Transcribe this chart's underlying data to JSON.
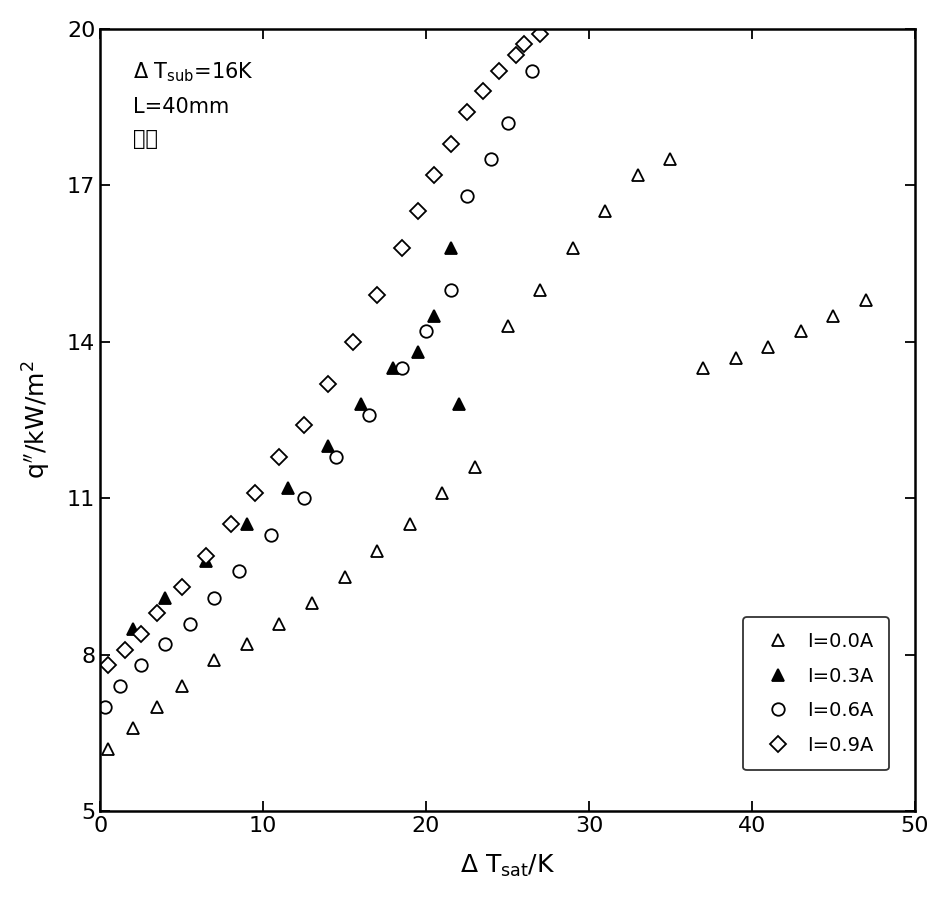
{
  "xlim": [
    0,
    50
  ],
  "ylim": [
    5,
    20
  ],
  "xticks": [
    0,
    10,
    20,
    30,
    40,
    50
  ],
  "yticks": [
    5,
    8,
    11,
    14,
    17,
    20
  ],
  "x00": [
    0.5,
    2.0,
    3.5,
    5.0,
    7.0,
    9.0,
    11.0,
    13.0,
    15.0,
    17.0,
    19.0,
    21.0,
    23.0,
    25.0,
    27.0,
    29.0,
    31.0,
    33.0,
    35.0,
    37.0,
    39.0,
    41.0,
    43.0,
    45.0,
    47.0
  ],
  "y00": [
    6.2,
    6.6,
    7.0,
    7.4,
    7.9,
    8.2,
    8.6,
    9.0,
    9.5,
    10.0,
    10.5,
    11.1,
    11.6,
    14.3,
    15.0,
    15.8,
    16.5,
    17.2,
    17.5,
    13.5,
    13.7,
    13.9,
    14.2,
    14.5,
    14.8
  ],
  "x03": [
    2.0,
    4.0,
    6.5,
    9.0,
    11.5,
    14.0,
    16.0,
    18.0,
    19.5,
    20.5,
    21.5,
    22.0
  ],
  "y03": [
    8.5,
    9.1,
    9.8,
    10.5,
    11.2,
    12.0,
    12.8,
    13.5,
    13.8,
    14.5,
    15.8,
    12.8
  ],
  "x06": [
    0.3,
    1.2,
    2.5,
    4.0,
    5.5,
    7.0,
    8.5,
    10.5,
    12.5,
    14.5,
    16.5,
    18.5,
    20.0,
    21.5,
    22.5,
    24.0,
    25.0,
    26.5
  ],
  "y06": [
    7.0,
    7.4,
    7.8,
    8.2,
    8.6,
    9.1,
    9.6,
    10.3,
    11.0,
    11.8,
    12.6,
    13.5,
    14.2,
    15.0,
    16.8,
    17.5,
    18.2,
    19.2
  ],
  "x09": [
    0.5,
    1.5,
    2.5,
    3.5,
    5.0,
    6.5,
    8.0,
    9.5,
    11.0,
    12.5,
    14.0,
    15.5,
    17.0,
    18.5,
    19.5,
    20.5,
    21.5,
    22.5,
    23.5,
    24.5,
    25.5,
    26.0,
    27.0
  ],
  "y09": [
    7.8,
    8.1,
    8.4,
    8.8,
    9.3,
    9.9,
    10.5,
    11.1,
    11.8,
    12.4,
    13.2,
    14.0,
    14.9,
    15.8,
    16.5,
    17.2,
    17.8,
    18.4,
    18.8,
    19.2,
    19.5,
    19.7,
    19.9
  ],
  "markersize_tri": 9,
  "markersize_circ": 9,
  "markersize_dia": 8,
  "fontsize_tick": 16,
  "fontsize_label": 18,
  "fontsize_annot": 15,
  "fontsize_legend": 14
}
